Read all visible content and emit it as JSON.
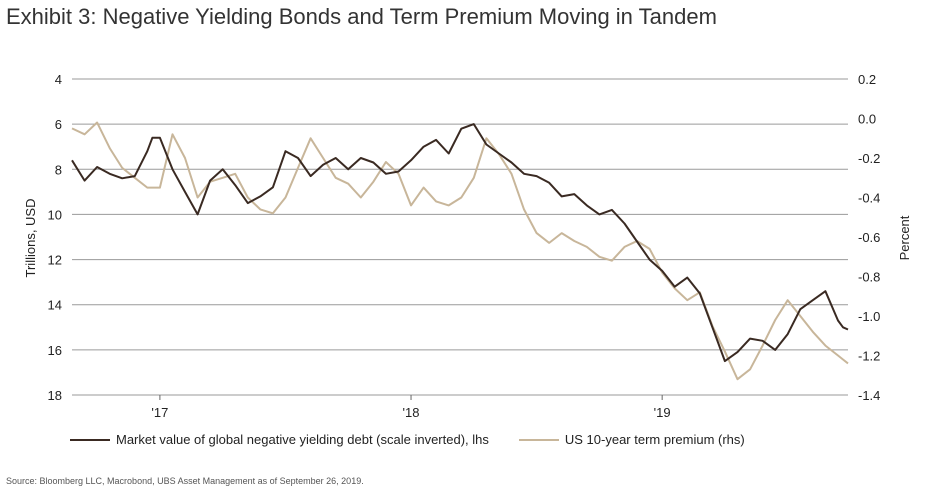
{
  "title": "Exhibit 3: Negative Yielding Bonds and Term Premium Moving in Tandem",
  "source": "Source: Bloomberg LLC, Macrobond, UBS Asset Management as of September 26, 2019.",
  "colors": {
    "debt": "#3a2a22",
    "premium": "#c8b69a",
    "grid": "#9a9a9a"
  },
  "chart_data": {
    "type": "line",
    "title": "Exhibit 3: Negative Yielding Bonds and Term Premium Moving in Tandem",
    "xlabel": "",
    "ylabel_left": "Trillions, USD",
    "ylabel_right": "Percent",
    "x_range": [
      2016.65,
      2019.74
    ],
    "x_ticks": [
      {
        "value": 2017.0,
        "label": "'17"
      },
      {
        "value": 2018.0,
        "label": "'18"
      },
      {
        "value": 2019.0,
        "label": "'19"
      }
    ],
    "ylim_left": [
      4,
      18
    ],
    "left_inverted": true,
    "left_ticks": [
      4,
      6,
      8,
      10,
      12,
      14,
      16,
      18
    ],
    "ylim_right": [
      -1.4,
      0.2
    ],
    "right_ticks": [
      0.2,
      0.0,
      -0.2,
      -0.4,
      -0.6,
      -0.8,
      -1.0,
      -1.2,
      -1.4
    ],
    "series": [
      {
        "name": "Market value of global negative yielding debt (scale inverted), lhs",
        "axis": "left",
        "x": [
          2016.65,
          2016.7,
          2016.75,
          2016.8,
          2016.85,
          2016.9,
          2016.95,
          2016.97,
          2017.0,
          2017.05,
          2017.1,
          2017.15,
          2017.2,
          2017.25,
          2017.3,
          2017.35,
          2017.4,
          2017.45,
          2017.5,
          2017.55,
          2017.6,
          2017.65,
          2017.7,
          2017.75,
          2017.8,
          2017.85,
          2017.9,
          2017.95,
          2018.0,
          2018.05,
          2018.1,
          2018.15,
          2018.2,
          2018.25,
          2018.3,
          2018.35,
          2018.4,
          2018.45,
          2018.5,
          2018.55,
          2018.6,
          2018.65,
          2018.7,
          2018.75,
          2018.8,
          2018.85,
          2018.9,
          2018.95,
          2019.0,
          2019.05,
          2019.1,
          2019.15,
          2019.2,
          2019.25,
          2019.3,
          2019.35,
          2019.4,
          2019.45,
          2019.5,
          2019.55,
          2019.6,
          2019.65,
          2019.7,
          2019.72,
          2019.74
        ],
        "values": [
          7.6,
          8.5,
          7.9,
          8.2,
          8.4,
          8.3,
          7.2,
          6.6,
          6.6,
          8.0,
          9.0,
          10.0,
          8.5,
          8.0,
          8.7,
          9.5,
          9.2,
          8.8,
          7.2,
          7.5,
          8.3,
          7.8,
          7.5,
          8.0,
          7.5,
          7.7,
          8.2,
          8.1,
          7.6,
          7.0,
          6.7,
          7.3,
          6.2,
          6.0,
          6.9,
          7.3,
          7.7,
          8.2,
          8.3,
          8.6,
          9.2,
          9.1,
          9.6,
          10.0,
          9.8,
          10.4,
          11.2,
          12.0,
          12.5,
          13.2,
          12.8,
          13.5,
          15.0,
          16.5,
          16.1,
          15.5,
          15.6,
          16.0,
          15.3,
          14.2,
          13.8,
          13.4,
          14.7,
          15.0,
          15.1
        ]
      },
      {
        "name": "US 10-year term premium (rhs)",
        "axis": "right",
        "x": [
          2016.65,
          2016.7,
          2016.75,
          2016.8,
          2016.85,
          2016.9,
          2016.95,
          2017.0,
          2017.05,
          2017.1,
          2017.15,
          2017.2,
          2017.25,
          2017.3,
          2017.35,
          2017.4,
          2017.45,
          2017.5,
          2017.55,
          2017.6,
          2017.65,
          2017.7,
          2017.75,
          2017.8,
          2017.85,
          2017.9,
          2017.95,
          2018.0,
          2018.05,
          2018.1,
          2018.15,
          2018.2,
          2018.25,
          2018.3,
          2018.35,
          2018.4,
          2018.45,
          2018.5,
          2018.55,
          2018.6,
          2018.65,
          2018.7,
          2018.75,
          2018.8,
          2018.85,
          2018.9,
          2018.95,
          2019.0,
          2019.05,
          2019.1,
          2019.15,
          2019.2,
          2019.25,
          2019.3,
          2019.35,
          2019.4,
          2019.45,
          2019.5,
          2019.55,
          2019.6,
          2019.65,
          2019.7,
          2019.72,
          2019.74
        ],
        "values": [
          -0.05,
          -0.08,
          -0.02,
          -0.15,
          -0.25,
          -0.3,
          -0.35,
          -0.35,
          -0.08,
          -0.2,
          -0.4,
          -0.32,
          -0.3,
          -0.28,
          -0.4,
          -0.46,
          -0.48,
          -0.4,
          -0.25,
          -0.1,
          -0.2,
          -0.3,
          -0.33,
          -0.4,
          -0.32,
          -0.22,
          -0.28,
          -0.44,
          -0.35,
          -0.42,
          -0.44,
          -0.4,
          -0.3,
          -0.1,
          -0.18,
          -0.28,
          -0.46,
          -0.58,
          -0.63,
          -0.58,
          -0.62,
          -0.65,
          -0.7,
          -0.72,
          -0.65,
          -0.62,
          -0.66,
          -0.78,
          -0.86,
          -0.92,
          -0.88,
          -1.05,
          -1.18,
          -1.32,
          -1.27,
          -1.15,
          -1.02,
          -0.92,
          -1.0,
          -1.08,
          -1.15,
          -1.2,
          -1.22,
          -1.24
        ]
      }
    ]
  }
}
